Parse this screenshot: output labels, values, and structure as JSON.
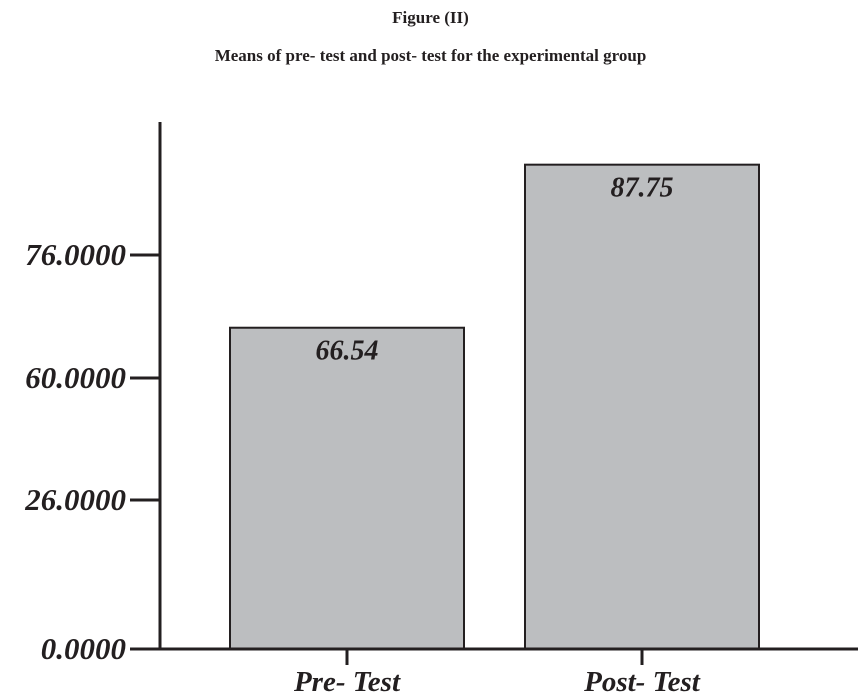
{
  "figure": {
    "label": "Figure (II)",
    "caption": "Means of pre- test and post- test for the experimental group"
  },
  "colors": {
    "bar_fill": "#bcbec0",
    "ink": "#231f20"
  },
  "chart_data": {
    "type": "bar",
    "title": "Means of pre- test and post- test for the experimental group",
    "xlabel": "",
    "ylabel": "",
    "categories": [
      "Pre- Test",
      "Post- Test"
    ],
    "values": [
      66.54,
      87.75
    ],
    "value_labels": [
      "66.54",
      "87.75"
    ],
    "y_ticks": [
      {
        "value": 0,
        "label": "0.0000"
      },
      {
        "value": 26,
        "label": "26.0000"
      },
      {
        "value": 60,
        "label": "60.0000"
      },
      {
        "value": 76,
        "label": "76.0000"
      }
    ],
    "grid": false,
    "legend": "none"
  }
}
